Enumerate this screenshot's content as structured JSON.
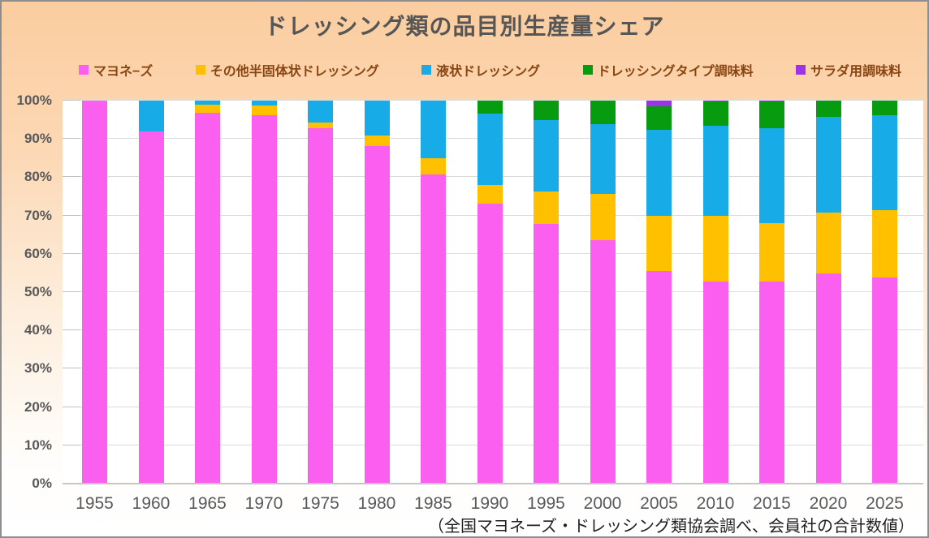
{
  "title": "ドレッシング類の品目別生産量シェア",
  "caption": "（全国マヨネーズ・ドレッシング類協会調べ、会員社の合計数値）",
  "colors": {
    "background_top": "#fbcda0",
    "plot_background": "#ffffff",
    "gridline": "#dcdcdc",
    "title_text": "#565656",
    "legend_text": "#8a4513",
    "axis_text": "#595959"
  },
  "chart_data": {
    "type": "bar",
    "stacked": true,
    "unit": "%",
    "title": "ドレッシング類の品目別生産量シェア",
    "xlabel": "",
    "ylabel": "",
    "ylim": [
      0,
      100
    ],
    "grid": true,
    "legend_position": "top",
    "y_ticks": [
      "0%",
      "10%",
      "20%",
      "30%",
      "40%",
      "50%",
      "60%",
      "70%",
      "80%",
      "90%",
      "100%"
    ],
    "categories": [
      "1955",
      "1960",
      "1965",
      "1970",
      "1975",
      "1980",
      "1985",
      "1990",
      "1995",
      "2000",
      "2005",
      "2010",
      "2015",
      "2020",
      "2025"
    ],
    "series": [
      {
        "name": "マヨネ−ズ",
        "color": "#fa5ff0",
        "values": [
          100,
          92,
          96.9,
          96.1,
          92.7,
          88.2,
          80.8,
          73,
          67.8,
          63.5,
          55.6,
          52.8,
          52.7,
          54.8,
          53.8
        ]
      },
      {
        "name": "その他半固体状ドレッシング",
        "color": "#ffc000",
        "values": [
          0,
          0,
          2.0,
          2.6,
          1.6,
          2.7,
          4.2,
          4.9,
          8.4,
          12.2,
          14.3,
          17.2,
          15.3,
          15.9,
          17.6
        ]
      },
      {
        "name": "液状ドレッシング",
        "color": "#17ace8",
        "values": [
          0,
          8,
          1.1,
          1.3,
          5.7,
          9.1,
          15.0,
          18.7,
          18.7,
          18.2,
          22.5,
          23.5,
          24.7,
          25.1,
          24.9
        ]
      },
      {
        "name": "ドレッシングタイプ調味料",
        "color": "#079b10",
        "values": [
          0,
          0,
          0,
          0,
          0,
          0,
          0,
          3.4,
          5.1,
          6.1,
          6.2,
          6.2,
          7.1,
          4.2,
          3.7
        ]
      },
      {
        "name": "サラダ用調味料",
        "color": "#9d32e8",
        "values": [
          0,
          0,
          0,
          0,
          0,
          0,
          0,
          0,
          0,
          0,
          1.4,
          0.3,
          0.2,
          0,
          0
        ]
      }
    ]
  }
}
